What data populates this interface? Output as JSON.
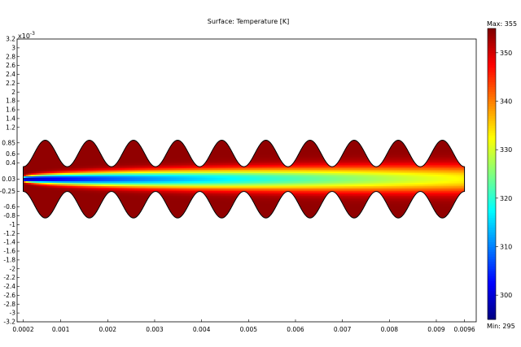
{
  "chart_data": {
    "type": "heatmap",
    "title": "Surface: Temperature [K]",
    "exponent_base": "x10",
    "exponent_power": "-3",
    "x_ticks": [
      "0.0002",
      "0.001",
      "0.002",
      "0.003",
      "0.004",
      "0.005",
      "0.006",
      "0.007",
      "0.008",
      "0.009",
      "0.0096"
    ],
    "x_tick_values": [
      0.0002,
      0.001,
      0.002,
      0.003,
      0.004,
      0.005,
      0.006,
      0.007,
      0.008,
      0.009,
      0.0096
    ],
    "xlim": [
      7e-05,
      0.00985
    ],
    "y_ticks": [
      "3.2",
      "3",
      "2.8",
      "2.6",
      "2.4",
      "2.2",
      "2",
      "1.8",
      "1.6",
      "1.4",
      "1.2",
      "0.85",
      "0.6",
      "0.4",
      "0.03",
      "-0.25",
      "-0.6",
      "-0.8",
      "-1",
      "-1.2",
      "-1.4",
      "-1.6",
      "-1.8",
      "-2",
      "-2.2",
      "-2.4",
      "-2.6",
      "-2.8",
      "-3",
      "-3.2"
    ],
    "ylim": [
      -3.2,
      3.2
    ],
    "colorbar": {
      "max_label": "Max: 355",
      "min_label": "Min: 295",
      "min": 295,
      "max": 355,
      "ticks": [
        "300",
        "310",
        "320",
        "330",
        "340",
        "350"
      ],
      "tick_values": [
        300,
        310,
        320,
        330,
        340,
        350
      ],
      "colormap": "jet"
    },
    "geometry": {
      "x_start": 0.0002,
      "x_end": 0.0096,
      "centerline": 0.03,
      "channel_half_width": 0.28,
      "wave_amplitude": 0.6,
      "wave_count": 10
    },
    "field": {
      "wall_temperature": 354,
      "inlet_temperature": 297,
      "outlet_core_temperature": 333
    }
  }
}
